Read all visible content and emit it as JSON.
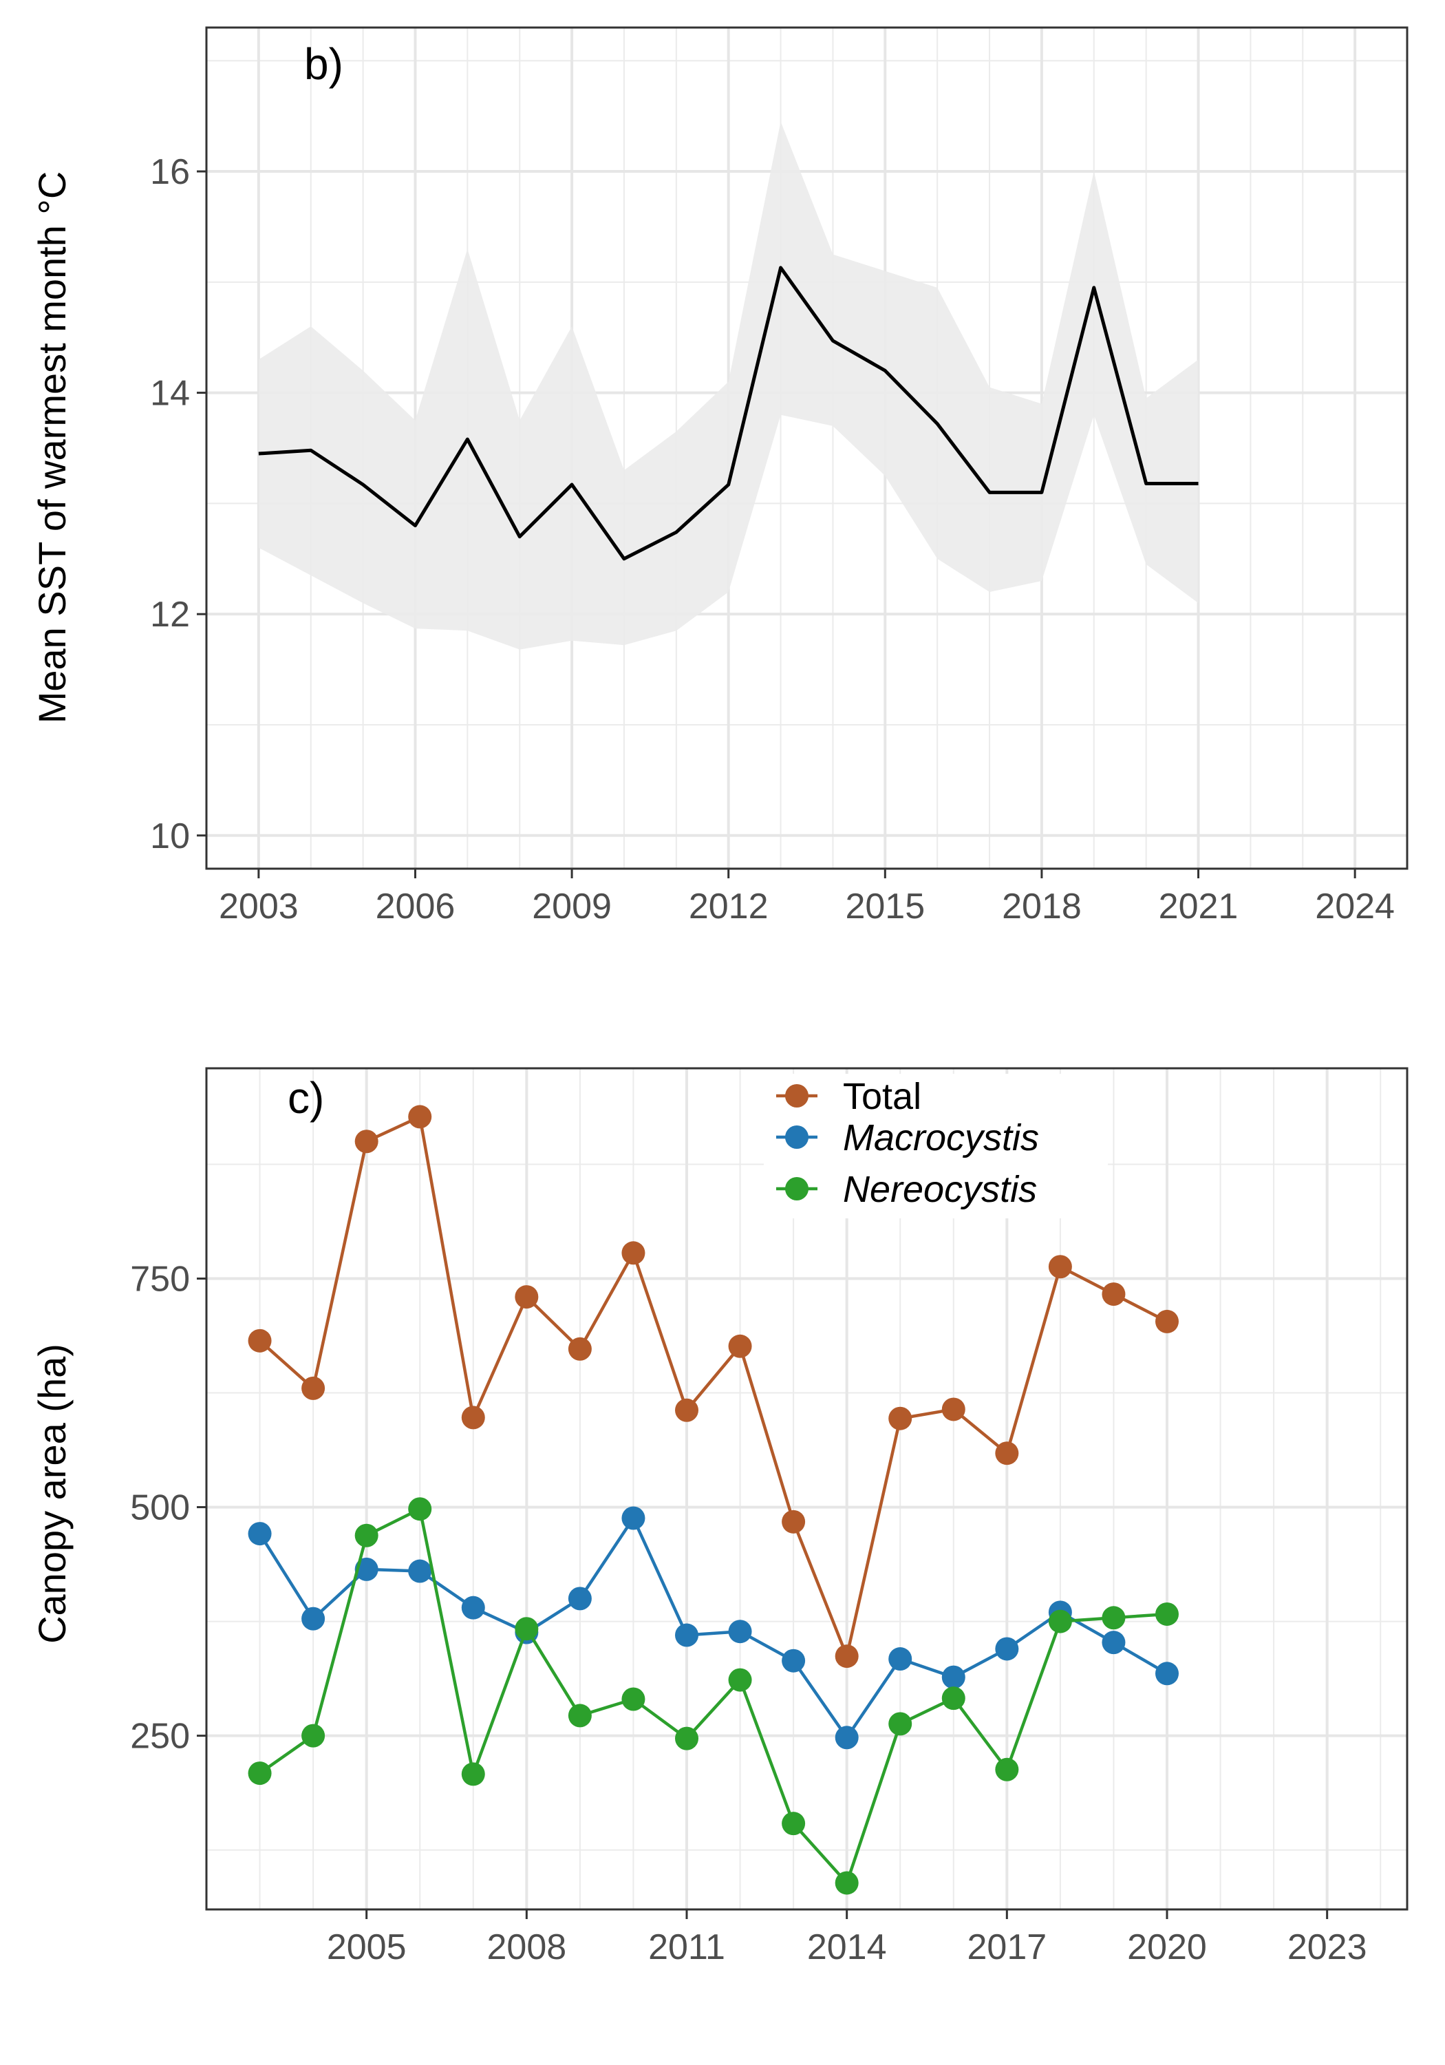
{
  "chart_data": [
    {
      "type": "line",
      "panel_label": "b)",
      "ylabel": "Mean SST of warmest month °C",
      "xlabel": "",
      "xlim": [
        2002,
        2025
      ],
      "ylim": [
        9.7,
        17.3
      ],
      "x_ticks": [
        2003,
        2006,
        2009,
        2012,
        2015,
        2018,
        2021,
        2024
      ],
      "x_tick_labels": [
        "2003",
        "2006",
        "2009",
        "2012",
        "2015",
        "2018",
        "2021",
        "2024"
      ],
      "y_ticks": [
        10,
        12,
        14,
        16
      ],
      "y_tick_labels": [
        "10",
        "12",
        "14",
        "16"
      ],
      "grid": true,
      "line_color": "#000000",
      "ribbon_color": "#ebebeb",
      "series": [
        {
          "x": [
            2003,
            2004,
            2005,
            2006,
            2007,
            2008,
            2009,
            2010,
            2011,
            2012,
            2013,
            2014,
            2015,
            2016,
            2017,
            2018,
            2019,
            2020,
            2021
          ],
          "values": [
            13.45,
            13.48,
            13.17,
            12.8,
            13.58,
            12.7,
            13.17,
            12.5,
            12.74,
            13.17,
            15.13,
            14.47,
            14.2,
            13.72,
            13.1,
            13.1,
            14.95,
            13.18,
            13.18
          ],
          "lower": [
            12.6,
            12.35,
            12.1,
            11.87,
            11.85,
            11.68,
            11.76,
            11.72,
            11.85,
            12.2,
            13.8,
            13.7,
            13.25,
            12.5,
            12.2,
            12.3,
            13.8,
            12.45,
            12.1
          ],
          "upper": [
            14.3,
            14.6,
            14.2,
            13.75,
            15.3,
            13.75,
            14.6,
            13.3,
            13.65,
            14.1,
            16.45,
            15.25,
            15.1,
            14.95,
            14.05,
            13.9,
            16.0,
            13.95,
            14.3
          ]
        }
      ]
    },
    {
      "type": "line",
      "panel_label": "c)",
      "ylabel": "Canopy area (ha)",
      "xlabel": "",
      "xlim": [
        2002,
        2024.5
      ],
      "ylim": [
        60,
        980
      ],
      "x_ticks": [
        2005,
        2008,
        2011,
        2014,
        2017,
        2020,
        2023
      ],
      "x_tick_labels": [
        "2005",
        "2008",
        "2011",
        "2014",
        "2017",
        "2020",
        "2023"
      ],
      "y_ticks": [
        250,
        500,
        750
      ],
      "y_tick_labels": [
        "250",
        "500",
        "750"
      ],
      "grid": true,
      "legend_position": "top-center",
      "categories": [
        2003,
        2004,
        2005,
        2006,
        2007,
        2008,
        2009,
        2010,
        2011,
        2012,
        2013,
        2014,
        2015,
        2016,
        2017,
        2018,
        2019,
        2020
      ],
      "series": [
        {
          "name": "Total",
          "italic": false,
          "color": "#b35a2a",
          "values": [
            682,
            630,
            900,
            927,
            598,
            730,
            673,
            778,
            606,
            676,
            484,
            337,
            597,
            607,
            559,
            763,
            733,
            703
          ]
        },
        {
          "name": "Macrocystis",
          "italic": true,
          "color": "#2277b4",
          "values": [
            471,
            378,
            432,
            430,
            390,
            363,
            400,
            488,
            360,
            364,
            332,
            248,
            334,
            314,
            345,
            385,
            352,
            318
          ]
        },
        {
          "name": "Nereocystis",
          "italic": true,
          "color": "#2ca02c",
          "values": [
            209,
            250,
            469,
            498,
            208,
            367,
            272,
            290,
            247,
            311,
            154,
            89,
            263,
            291,
            213,
            375,
            379,
            383
          ]
        }
      ]
    }
  ]
}
